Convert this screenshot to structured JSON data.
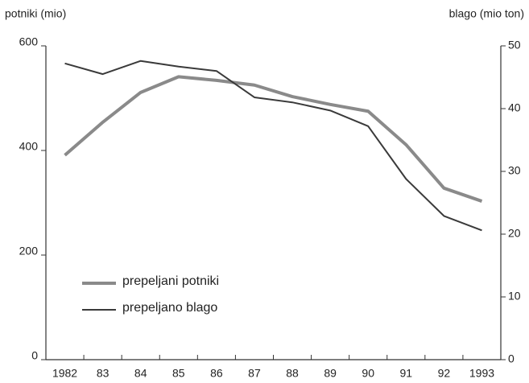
{
  "chart_data": {
    "type": "line",
    "y_label": "potniki (mio)",
    "y2_label": "blago (mio ton)",
    "categories": [
      "1982",
      "83",
      "84",
      "85",
      "86",
      "87",
      "88",
      "89",
      "90",
      "91",
      "92",
      "1993"
    ],
    "series": [
      {
        "name": "prepeljani potniki",
        "color": "#8a8a8a",
        "width": 4,
        "axis": "y",
        "values": [
          391,
          454,
          511,
          541,
          534,
          525,
          503,
          488,
          475,
          411,
          328,
          303
        ]
      },
      {
        "name": "prepeljano blago",
        "color": "#3a3a3a",
        "width": 2,
        "axis": "y2",
        "values": [
          47.2,
          45.5,
          47.6,
          46.7,
          46,
          41.8,
          41,
          39.7,
          37.2,
          28.8,
          22.9,
          20.6
        ]
      }
    ],
    "ylim": [
      0,
      600
    ],
    "yticks": [
      0,
      200,
      400,
      600
    ],
    "y2lim": [
      0,
      50
    ],
    "y2ticks": [
      0,
      10,
      20,
      30,
      40,
      50
    ],
    "grid": false,
    "legend": "lower left"
  }
}
